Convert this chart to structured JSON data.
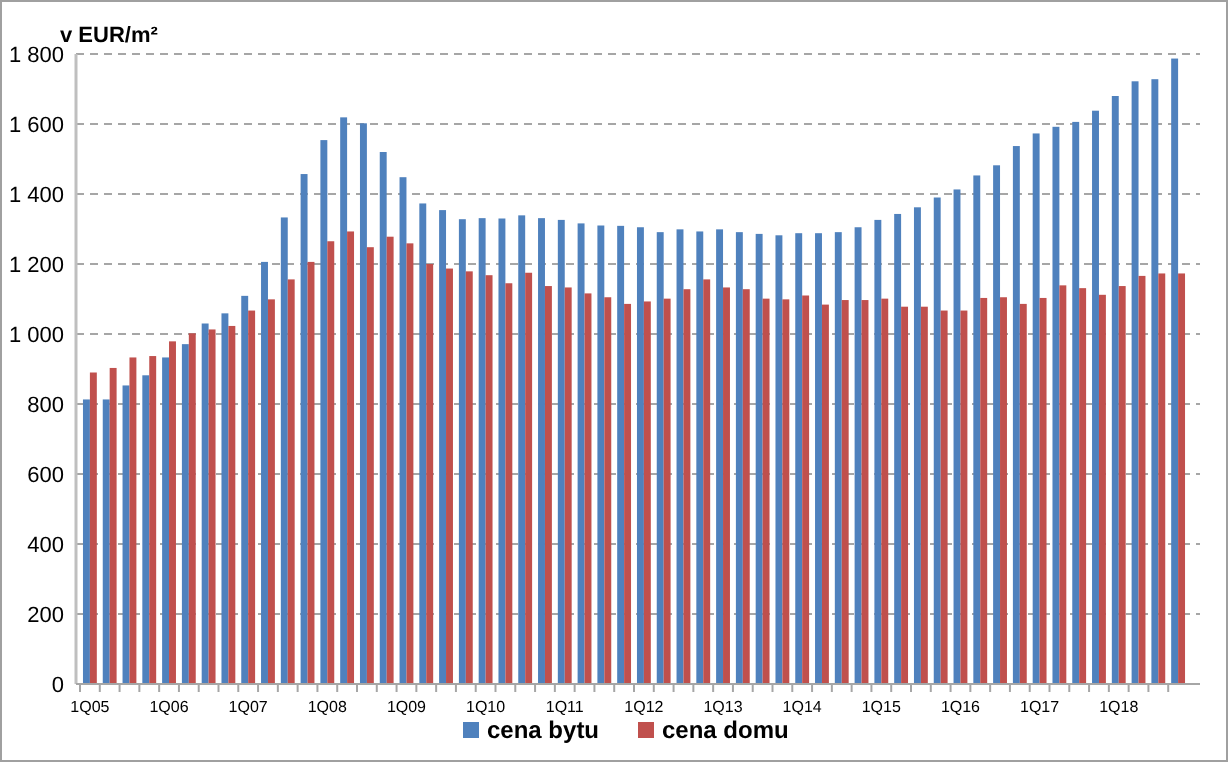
{
  "chart_data": {
    "type": "bar",
    "ylabel": "v EUR/m²",
    "categories": [
      "1Q05",
      null,
      null,
      null,
      "1Q06",
      null,
      null,
      null,
      "1Q07",
      null,
      null,
      null,
      "1Q08",
      null,
      null,
      null,
      "1Q09",
      null,
      null,
      null,
      "1Q10",
      null,
      null,
      null,
      "1Q11",
      null,
      null,
      null,
      "1Q12",
      null,
      null,
      null,
      "1Q13",
      null,
      null,
      null,
      "1Q14",
      null,
      null,
      null,
      "1Q15",
      null,
      null,
      null,
      "1Q16",
      null,
      null,
      null,
      "1Q17",
      null,
      null,
      null,
      "1Q18",
      null,
      null,
      null
    ],
    "series": [
      {
        "name": "cena bytu",
        "color": "#4f81bd",
        "values": [
          813,
          813,
          853,
          882,
          933,
          971,
          1030,
          1059,
          1109,
          1206,
          1333,
          1457,
          1554,
          1619,
          1602,
          1520,
          1448,
          1373,
          1354,
          1328,
          1331,
          1330,
          1339,
          1331,
          1326,
          1316,
          1310,
          1309,
          1305,
          1291,
          1299,
          1293,
          1299,
          1291,
          1286,
          1282,
          1288,
          1288,
          1291,
          1305,
          1326,
          1343,
          1362,
          1390,
          1413,
          1453,
          1482,
          1537,
          1573,
          1592,
          1606,
          1638,
          1680,
          1722,
          1728,
          1787
        ]
      },
      {
        "name": "cena domu",
        "color": "#c0504d",
        "values": [
          890,
          903,
          933,
          937,
          979,
          1002,
          1013,
          1023,
          1067,
          1099,
          1156,
          1206,
          1265,
          1293,
          1248,
          1278,
          1259,
          1200,
          1187,
          1179,
          1168,
          1145,
          1175,
          1137,
          1133,
          1116,
          1105,
          1086,
          1093,
          1101,
          1128,
          1156,
          1133,
          1128,
          1101,
          1099,
          1110,
          1084,
          1097,
          1097,
          1101,
          1078,
          1078,
          1067,
          1067,
          1103,
          1105,
          1086,
          1103,
          1139,
          1131,
          1112,
          1137,
          1166,
          1173,
          1173
        ]
      }
    ],
    "ylim": [
      0,
      1800
    ],
    "yticks": [
      0,
      200,
      400,
      600,
      800,
      {
        "value": 1000,
        "label": "1 000"
      },
      {
        "value": 1200,
        "label": "1 200"
      },
      {
        "value": 1400,
        "label": "1 400"
      },
      {
        "value": 1600,
        "label": "1 600"
      },
      {
        "value": 1800,
        "label": "1 800"
      }
    ],
    "grid": "y",
    "legend": "bottom"
  }
}
